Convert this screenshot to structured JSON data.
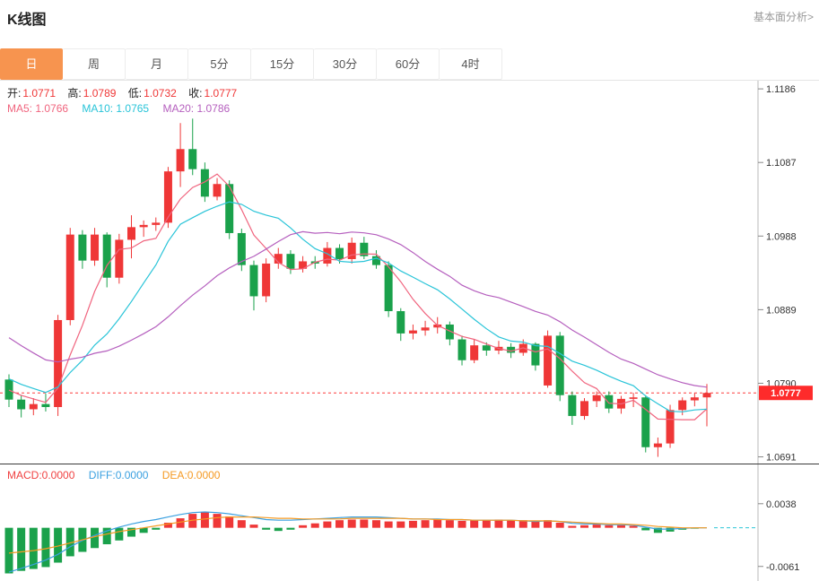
{
  "header": {
    "title": "K线图",
    "link": "基本面分析>"
  },
  "tabs": [
    {
      "key": "day",
      "label": "日",
      "active": true
    },
    {
      "key": "week",
      "label": "周",
      "active": false
    },
    {
      "key": "month",
      "label": "月",
      "active": false
    },
    {
      "key": "5min",
      "label": "5分",
      "active": false
    },
    {
      "key": "15min",
      "label": "15分",
      "active": false
    },
    {
      "key": "30min",
      "label": "30分",
      "active": false
    },
    {
      "key": "60min",
      "label": "60分",
      "active": false
    },
    {
      "key": "4hour",
      "label": "4时",
      "active": false
    }
  ],
  "info": {
    "ohlc": [
      {
        "label": "开:",
        "value": "1.0771"
      },
      {
        "label": "高:",
        "value": "1.0789"
      },
      {
        "label": "低:",
        "value": "1.0732"
      },
      {
        "label": "收:",
        "value": "1.0777"
      }
    ],
    "ma": [
      {
        "label": "MA5: 1.0766",
        "color": "#f0647e"
      },
      {
        "label": "MA10: 1.0765",
        "color": "#29c4d8"
      },
      {
        "label": "MA20: 1.0786",
        "color": "#b55fbe"
      }
    ],
    "macd": [
      {
        "label": "MACD:0.0000",
        "color": "#f04141"
      },
      {
        "label": "DIFF:0.0000",
        "color": "#3aa0e0"
      },
      {
        "label": "DEA:0.0000",
        "color": "#f59a23"
      }
    ]
  },
  "colors": {
    "up": "#ef3737",
    "down": "#1aa14b",
    "ma5": "#f0647e",
    "ma10": "#29c4d8",
    "ma20": "#b55fbe",
    "diff": "#3aa0e0",
    "dea": "#f59a23",
    "badge": "#fe2b2b",
    "dotted_line": "#fe3b3b",
    "zero_dash": "#2bc5d8",
    "axis": "#b8b8b8",
    "tab_active_bg": "#f7944f"
  },
  "chart_data": {
    "type": "candlestick",
    "panels": [
      "price",
      "macd"
    ],
    "price_axis": {
      "ticks": [
        1.1186,
        1.1087,
        1.0988,
        1.0889,
        1.079,
        1.0691
      ],
      "ylim": [
        1.0682,
        1.1197
      ],
      "current_price": 1.0777,
      "current_price_label": "1.0777"
    },
    "ohlc_latest": {
      "open": 1.0771,
      "high": 1.0789,
      "low": 1.0732,
      "close": 1.0777
    },
    "ma_values": {
      "ma5": 1.0766,
      "ma10": 1.0765,
      "ma20": 1.0786
    },
    "ma_seed_closes": [
      1.098,
      1.097,
      1.0958,
      1.0945,
      1.093,
      1.0915,
      1.09,
      1.0885,
      1.087,
      1.0855,
      1.084,
      1.0828,
      1.0818,
      1.081,
      1.0802,
      1.0796,
      1.079,
      1.0786,
      1.0782,
      1.0778
    ],
    "candles": [
      [
        1.0795,
        1.0802,
        1.0758,
        1.0768
      ],
      [
        1.0768,
        1.0774,
        1.0744,
        1.0755
      ],
      [
        1.0755,
        1.077,
        1.0747,
        1.0762
      ],
      [
        1.0762,
        1.0776,
        1.0752,
        1.0758
      ],
      [
        1.0758,
        1.0882,
        1.0746,
        1.0875
      ],
      [
        1.0875,
        1.0999,
        1.0868,
        1.099
      ],
      [
        1.099,
        1.0996,
        1.0944,
        1.0955
      ],
      [
        1.0955,
        1.0999,
        1.0948,
        1.099
      ],
      [
        1.099,
        1.0993,
        1.0919,
        1.0932
      ],
      [
        1.0932,
        1.0991,
        1.0924,
        1.0983
      ],
      [
        1.0983,
        1.1016,
        1.0958,
        1.1
      ],
      [
        1.1,
        1.1009,
        1.0987,
        1.1003
      ],
      [
        1.1003,
        1.1013,
        1.0995,
        1.1006
      ],
      [
        1.1006,
        1.1081,
        1.0999,
        1.1075
      ],
      [
        1.1075,
        1.114,
        1.1054,
        1.1105
      ],
      [
        1.1105,
        1.1146,
        1.107,
        1.1078
      ],
      [
        1.1078,
        1.1087,
        1.1034,
        1.1041
      ],
      [
        1.1041,
        1.1066,
        1.1036,
        1.1058
      ],
      [
        1.1058,
        1.1063,
        1.0984,
        1.0992
      ],
      [
        1.0992,
        1.0998,
        1.0941,
        1.0949
      ],
      [
        1.0949,
        1.0955,
        1.0888,
        1.0907
      ],
      [
        1.0907,
        1.0958,
        1.0899,
        1.0951
      ],
      [
        1.0951,
        1.0972,
        1.0944,
        1.0964
      ],
      [
        1.0964,
        1.0969,
        1.0937,
        1.0944
      ],
      [
        1.0944,
        1.0961,
        1.0939,
        1.0954
      ],
      [
        1.0954,
        1.0961,
        1.0944,
        1.0951
      ],
      [
        1.0951,
        1.098,
        1.0947,
        1.0972
      ],
      [
        1.0972,
        1.0977,
        1.0951,
        1.0957
      ],
      [
        1.0957,
        1.0986,
        1.0951,
        1.0979
      ],
      [
        1.0979,
        1.0987,
        1.0957,
        1.0961
      ],
      [
        1.0961,
        1.0969,
        1.0944,
        1.0949
      ],
      [
        1.0949,
        1.0954,
        1.0879,
        1.0887
      ],
      [
        1.0887,
        1.0891,
        1.0847,
        1.0857
      ],
      [
        1.0857,
        1.0869,
        1.0849,
        1.0861
      ],
      [
        1.0861,
        1.0874,
        1.0854,
        1.0865
      ],
      [
        1.0865,
        1.0879,
        1.0857,
        1.0869
      ],
      [
        1.0869,
        1.0873,
        1.0841,
        1.0849
      ],
      [
        1.0849,
        1.0854,
        1.0814,
        1.0821
      ],
      [
        1.0821,
        1.0849,
        1.0817,
        1.0841
      ],
      [
        1.0841,
        1.0845,
        1.0827,
        1.0834
      ],
      [
        1.0834,
        1.0847,
        1.0829,
        1.0839
      ],
      [
        1.0839,
        1.0844,
        1.0824,
        1.0831
      ],
      [
        1.0831,
        1.0849,
        1.0827,
        1.0843
      ],
      [
        1.0843,
        1.0845,
        1.0807,
        1.0814
      ],
      [
        1.0787,
        1.0861,
        1.0784,
        1.0854
      ],
      [
        1.0854,
        1.0859,
        1.0766,
        1.0774
      ],
      [
        1.0774,
        1.0779,
        1.0734,
        1.0746
      ],
      [
        1.0746,
        1.077,
        1.0741,
        1.0766
      ],
      [
        1.0766,
        1.0779,
        1.0758,
        1.0774
      ],
      [
        1.0774,
        1.0779,
        1.075,
        1.0756
      ],
      [
        1.0756,
        1.0773,
        1.0749,
        1.0769
      ],
      [
        1.0769,
        1.0777,
        1.0758,
        1.0771
      ],
      [
        1.0771,
        1.0774,
        1.0697,
        1.0704
      ],
      [
        1.0704,
        1.0717,
        1.0691,
        1.0709
      ],
      [
        1.0709,
        1.0761,
        1.0703,
        1.0754
      ],
      [
        1.0754,
        1.0771,
        1.0747,
        1.0767
      ],
      [
        1.0767,
        1.0777,
        1.0759,
        1.0771
      ],
      [
        1.0771,
        1.0789,
        1.0732,
        1.0777
      ]
    ],
    "macd": {
      "values": {
        "macd": 0.0,
        "diff": 0.0,
        "dea": 0.0
      },
      "ticks": [
        0.0038,
        -0.0061
      ],
      "ylim": [
        -0.0084,
        0.01
      ],
      "hist": [
        -0.0072,
        -0.0068,
        -0.0065,
        -0.0062,
        -0.0055,
        -0.0045,
        -0.0038,
        -0.0032,
        -0.0026,
        -0.002,
        -0.0014,
        -0.0008,
        -0.0003,
        0.0008,
        0.0015,
        0.0022,
        0.0025,
        0.0022,
        0.0018,
        0.0012,
        0.0005,
        -0.0003,
        -0.0005,
        -0.0003,
        0.0004,
        0.0007,
        0.001,
        0.0012,
        0.0013,
        0.0013,
        0.0012,
        0.001,
        0.001,
        0.0011,
        0.0012,
        0.0013,
        0.0012,
        0.0011,
        0.0012,
        0.0012,
        0.0013,
        0.0012,
        0.0012,
        0.001,
        0.0012,
        0.0008,
        0.0003,
        0.0004,
        0.0005,
        0.0004,
        0.0004,
        0.0003,
        -0.0004,
        -0.0008,
        -0.0006,
        -0.0003,
        -0.0001,
        0.0
      ],
      "diff": [
        -0.007,
        -0.0064,
        -0.0058,
        -0.0051,
        -0.0042,
        -0.003,
        -0.002,
        -0.0012,
        -0.0005,
        0.0001,
        0.0006,
        0.001,
        0.0013,
        0.0017,
        0.0021,
        0.0024,
        0.0025,
        0.0024,
        0.0022,
        0.0019,
        0.0016,
        0.0013,
        0.0012,
        0.0012,
        0.0013,
        0.0014,
        0.0015,
        0.0016,
        0.0017,
        0.0017,
        0.0017,
        0.0016,
        0.0015,
        0.0014,
        0.0014,
        0.0014,
        0.0013,
        0.0013,
        0.0012,
        0.0012,
        0.0012,
        0.0012,
        0.0011,
        0.001,
        0.0011,
        0.001,
        0.0007,
        0.0006,
        0.0006,
        0.0005,
        0.0005,
        0.0004,
        0.0001,
        -0.0002,
        -0.0002,
        -0.0001,
        0.0,
        0.0
      ],
      "dea": [
        -0.004,
        -0.0038,
        -0.0036,
        -0.0033,
        -0.0029,
        -0.0024,
        -0.0019,
        -0.0014,
        -0.001,
        -0.0006,
        -0.0003,
        0.0,
        0.0003,
        0.0006,
        0.0009,
        0.0012,
        0.0014,
        0.0016,
        0.0017,
        0.0017,
        0.0017,
        0.0016,
        0.0015,
        0.0015,
        0.0014,
        0.0014,
        0.0014,
        0.0014,
        0.0015,
        0.0015,
        0.0015,
        0.0015,
        0.0015,
        0.0014,
        0.0014,
        0.0013,
        0.0013,
        0.0013,
        0.0012,
        0.0012,
        0.0012,
        0.0012,
        0.0011,
        0.0011,
        0.0011,
        0.001,
        0.0009,
        0.0008,
        0.0007,
        0.0006,
        0.0006,
        0.0005,
        0.0004,
        0.0002,
        0.0001,
        0.0,
        0.0,
        0.0
      ]
    }
  }
}
